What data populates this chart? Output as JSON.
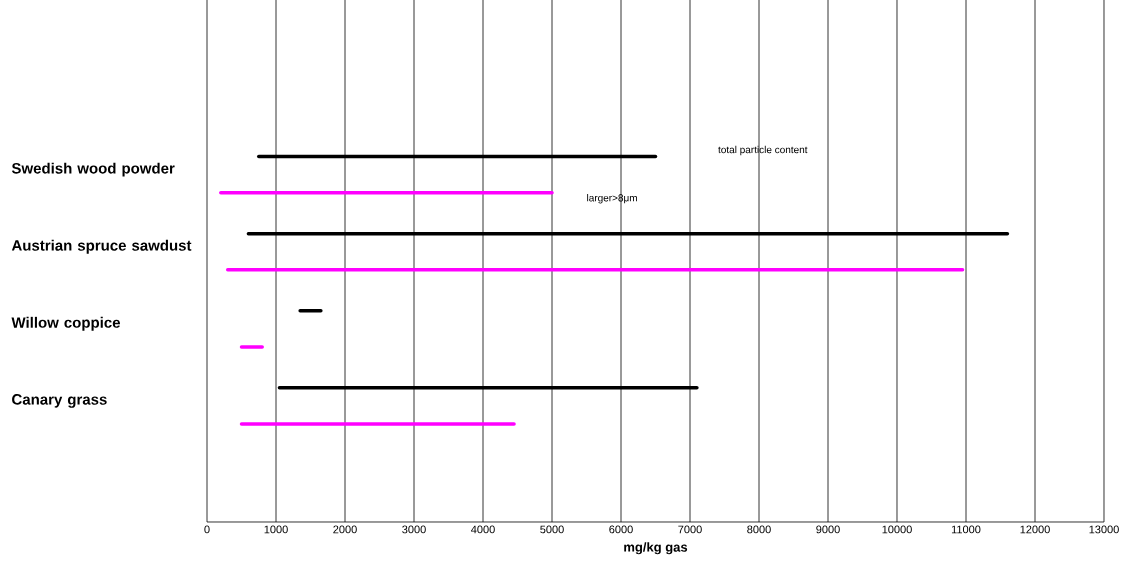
{
  "chart_data": {
    "type": "bar",
    "orientation": "horizontal",
    "xlabel": "mg/kg gas",
    "categories": [
      "Swedish wood powder",
      "Austrian spruce sawdust",
      "Willow coppice",
      "Canary grass"
    ],
    "series": [
      {
        "name": "total particle content",
        "color": "#000000",
        "base": [
          750,
          600,
          1350,
          1050
        ],
        "values": [
          5750,
          11000,
          300,
          6050
        ]
      },
      {
        "name": "larger>8μm",
        "color": "#ff00ff",
        "base": [
          200,
          300,
          500,
          500
        ],
        "values": [
          4800,
          10650,
          300,
          3950
        ]
      }
    ],
    "xlim": [
      0,
      13000
    ],
    "xticks": [
      0,
      1000,
      2000,
      3000,
      4000,
      5000,
      6000,
      7000,
      8000,
      9000,
      10000,
      11000,
      12000,
      13000
    ],
    "grid": "x"
  }
}
